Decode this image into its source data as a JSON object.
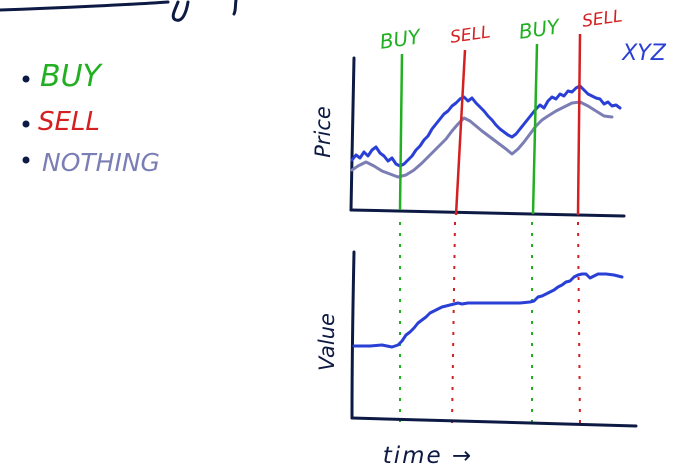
{
  "legend": {
    "items": [
      {
        "label": "BUY",
        "color": "#22b022"
      },
      {
        "label": "SELL",
        "color": "#d42020"
      },
      {
        "label": "NOTHING",
        "color": "#7a7eb4"
      }
    ]
  },
  "signals": [
    {
      "label": "BUY",
      "color": "#22b022"
    },
    {
      "label": "SELL",
      "color": "#d42020"
    },
    {
      "label": "BUY",
      "color": "#22b022"
    },
    {
      "label": "SELL",
      "color": "#d42020"
    }
  ],
  "price_chart": {
    "ylabel": "Price",
    "ticker": "XYZ",
    "ticker_color": "#2a3fd6"
  },
  "value_chart": {
    "ylabel": "Value"
  },
  "xlabel": "time →",
  "colors": {
    "axis": "#0d1a44",
    "line": "#2a3fd6",
    "shadow": "#7a7eb4",
    "bullet": "#0d1a44"
  }
}
